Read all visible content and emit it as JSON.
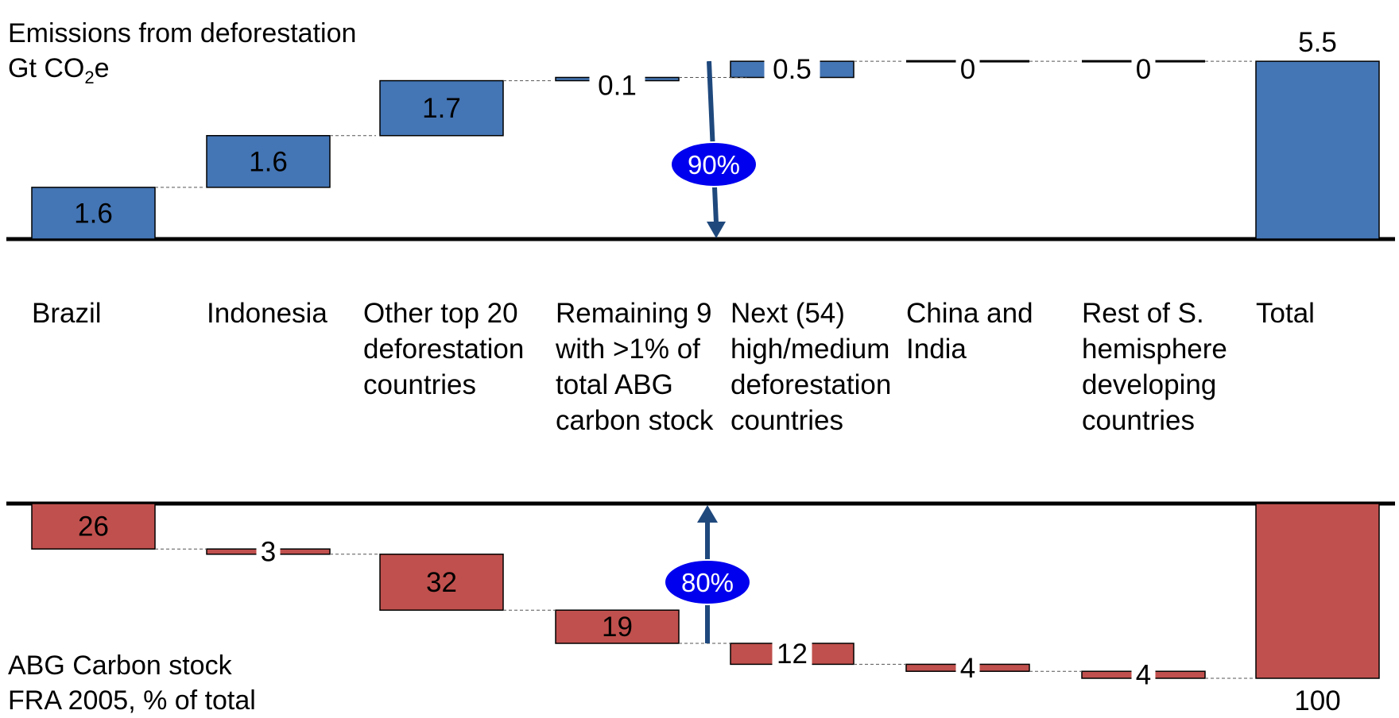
{
  "chart_data": {
    "type": "waterfall",
    "categories": [
      "Brazil",
      "Indonesia",
      "Other top 20\ndeforestation\ncountries",
      "Remaining 9\nwith >1% of\ntotal ABG\ncarbon stock",
      "Next (54)\nhigh/medium\ndeforestation\ncountries",
      "China and\nIndia",
      "Rest of S.\nhemisphere\ndeveloping\ncountries",
      "Total"
    ],
    "top_panel": {
      "title_line1": "Emissions from deforestation",
      "title_line2_prefix": "Gt CO",
      "title_line2_sub": "2",
      "title_line2_suffix": "e",
      "labels": [
        "1.6",
        "1.6",
        "1.7",
        "0.1",
        "0.5",
        "0",
        "0",
        "5.5"
      ],
      "values": [
        1.6,
        1.6,
        1.7,
        0.1,
        0.5,
        0,
        0,
        5.5
      ],
      "color": "#4475B4",
      "annotation": "90%",
      "is_total_last": true
    },
    "bottom_panel": {
      "title_line1": "ABG Carbon stock",
      "title_line2": "FRA 2005, % of total",
      "labels": [
        "26",
        "3",
        "32",
        "19",
        "12",
        "4",
        "4",
        "100"
      ],
      "values": [
        26,
        3,
        32,
        19,
        12,
        4,
        4,
        100
      ],
      "color": "#C0504D",
      "annotation": "80%",
      "is_total_last": true
    },
    "annotation_color": "#0000EE",
    "arrow_color": "#1F497D"
  }
}
